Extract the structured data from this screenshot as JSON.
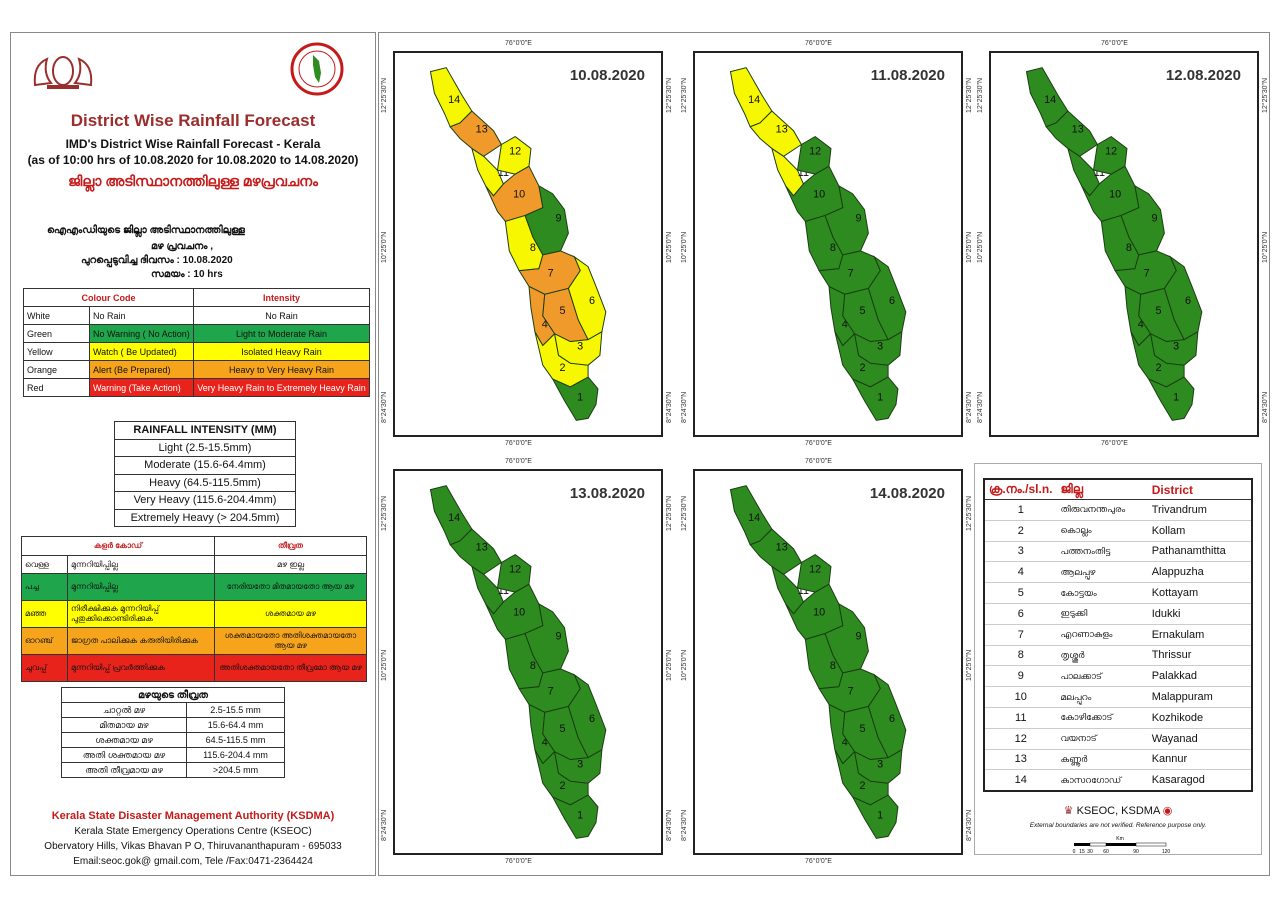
{
  "header": {
    "title": "District Wise Rainfall Forecast",
    "subtitle1": "IMD's District Wise Rainfall Forecast - Kerala",
    "subtitle2": "(as of 10:00 hrs of 10.08.2020  for 10.08.2020  to 14.08.2020)",
    "mal_title": "ജില്ലാ അടിസ്ഥാനത്തിലുള്ള  മഴപ്രവചനം",
    "mal_line1": "ഐഎംഡിയുടെ  ജില്ലാ      അടിസ്ഥാനത്തിലുള്ള",
    "mal_line2": "മഴ പ്രവചനം  ,",
    "mal_line3": "പുറപ്പെടുവിച്ച          ദിവസം :  10.08.2020",
    "mal_line4": "സമയം :  10  hrs"
  },
  "legend_en": {
    "headers": [
      "Colour Code",
      "Intensity"
    ],
    "rows": [
      {
        "color": "White",
        "action": "No Rain",
        "intensity": "No Rain",
        "bg": "#ffffff"
      },
      {
        "color": "Green",
        "action": "No Warning ( No Action)",
        "intensity": "Light to Moderate Rain",
        "bg": "#1fa54b"
      },
      {
        "color": "Yellow",
        "action": "Watch ( Be Updated)",
        "intensity": "Isolated Heavy Rain",
        "bg": "#ffff00"
      },
      {
        "color": "Orange",
        "action": "Alert (Be Prepared)",
        "intensity": "Heavy to Very Heavy Rain",
        "bg": "#f5a41c"
      },
      {
        "color": "Red",
        "action": "Warning (Take Action)",
        "intensity": "Very Heavy Rain to Extremely Heavy Rain",
        "bg": "#e8231b"
      }
    ]
  },
  "intensity_en": {
    "title": "RAINFALL INTENSITY (MM)",
    "rows": [
      "Light (2.5-15.5mm)",
      "Moderate (15.6-64.4mm)",
      "Heavy (64.5-115.5mm)",
      "Very Heavy (115.6-204.4mm)",
      "Extremely Heavy (> 204.5mm)"
    ]
  },
  "legend_ml": {
    "headers": [
      "കളർ കോഡ്",
      "തീവ്രത"
    ],
    "rows": [
      {
        "color": "വെള്ള",
        "action": "മുന്നറിയിപ്പില്ല",
        "intensity": "മഴ ഇല്ല",
        "bg": "#ffffff"
      },
      {
        "color": "പച്ച",
        "action": "മുന്നറിയിപ്പില്ല",
        "intensity": "നേരിയതോ  മിതമായതോ ആയ മഴ",
        "bg": "#1fa54b"
      },
      {
        "color": "മഞ്ഞ",
        "action": "നിരീക്ഷിക്കുക   മുന്നറിയിപ്പ് പുതുക്കിക്കൊണ്ടിരിക്കുക",
        "intensity": "ശക്തമായ    മഴ",
        "bg": "#ffff00"
      },
      {
        "color": "ഓറഞ്ച്",
        "action": "ജാഗ്രത  പാലിക്കുക കരുതിയിരിക്കുക",
        "intensity": "ശക്തമായതോ അതിശക്തമായതോ  ആയ മഴ",
        "bg": "#f5a41c"
      },
      {
        "color": "ചുവപ്പ്",
        "action": "മുന്നറിയിപ്പ് പ്രവർത്തിക്കുക",
        "intensity": "അതിശക്തമായതോ തീവ്രമോ  ആയ മഴ",
        "bg": "#e8231b"
      }
    ]
  },
  "intensity_ml": {
    "title": "മഴയുടെ തീവ്രത",
    "rows": [
      {
        "label": "ചാറ്റൽ മഴ",
        "range": "2.5-15.5 mm"
      },
      {
        "label": "മിതമായ മഴ",
        "range": "15.6-64.4 mm"
      },
      {
        "label": "ശക്തമായ മഴ",
        "range": "64.5-115.5 mm"
      },
      {
        "label": "അതി ശക്തമായ മഴ",
        "range": "115.6-204.4 mm"
      },
      {
        "label": "അതി തീവ്രമായ മഴ",
        "range": ">204.5 mm"
      }
    ]
  },
  "footer": {
    "org": "Kerala State Disaster Management Authority (KSDMA)",
    "line1": "Kerala State Emergency Operations Centre (KSEOC)",
    "line2": "Obervatory Hills, Vikas Bhavan P O, Thiruvananthapuram - 695033",
    "line3": "Email:seoc.gok@ gmail.com, Tele /Fax:0471-2364424"
  },
  "coords": {
    "lon": "76°0'0\"E",
    "lat_top": "12°25'30\"N",
    "lat_mid": "10°25'0\"N",
    "lat_bot": "8°24'30\"N"
  },
  "colors": {
    "green": "#2e8b1f",
    "yellow": "#f6f700",
    "orange": "#f09a2b"
  },
  "maps": [
    {
      "date": "10.08.2020",
      "districts": {
        "1": "green",
        "2": "yellow",
        "3": "yellow",
        "4": "orange",
        "5": "orange",
        "6": "yellow",
        "7": "orange",
        "8": "yellow",
        "9": "green",
        "10": "orange",
        "11": "yellow",
        "12": "yellow",
        "13": "orange",
        "14": "yellow"
      }
    },
    {
      "date": "11.08.2020",
      "districts": {
        "1": "green",
        "2": "green",
        "3": "green",
        "4": "green",
        "5": "green",
        "6": "green",
        "7": "green",
        "8": "green",
        "9": "green",
        "10": "green",
        "11": "yellow",
        "12": "green",
        "13": "yellow",
        "14": "yellow"
      }
    },
    {
      "date": "12.08.2020",
      "districts": {
        "1": "green",
        "2": "green",
        "3": "green",
        "4": "green",
        "5": "green",
        "6": "green",
        "7": "green",
        "8": "green",
        "9": "green",
        "10": "green",
        "11": "green",
        "12": "green",
        "13": "green",
        "14": "green"
      }
    },
    {
      "date": "13.08.2020",
      "districts": {
        "1": "green",
        "2": "green",
        "3": "green",
        "4": "green",
        "5": "green",
        "6": "green",
        "7": "green",
        "8": "green",
        "9": "green",
        "10": "green",
        "11": "green",
        "12": "green",
        "13": "green",
        "14": "green"
      }
    },
    {
      "date": "14.08.2020",
      "districts": {
        "1": "green",
        "2": "green",
        "3": "green",
        "4": "green",
        "5": "green",
        "6": "green",
        "7": "green",
        "8": "green",
        "9": "green",
        "10": "green",
        "11": "green",
        "12": "green",
        "13": "green",
        "14": "green"
      }
    }
  ],
  "district_table": {
    "headers": [
      "ക്ര.നം./sl.n.",
      "ജില്ല",
      "District"
    ],
    "rows": [
      {
        "n": "1",
        "ml": "തിരുവനന്തപുരം",
        "en": "Trivandrum"
      },
      {
        "n": "2",
        "ml": "കൊല്ലം",
        "en": "Kollam"
      },
      {
        "n": "3",
        "ml": "പത്തനംതിട്ട",
        "en": "Pathanamthitta"
      },
      {
        "n": "4",
        "ml": "ആലപ്പുഴ",
        "en": "Alappuzha"
      },
      {
        "n": "5",
        "ml": "കോട്ടയം",
        "en": "Kottayam"
      },
      {
        "n": "6",
        "ml": "ഇടുക്കി",
        "en": "Idukki"
      },
      {
        "n": "7",
        "ml": "എറണാകുളം",
        "en": "Ernakulam"
      },
      {
        "n": "8",
        "ml": "തൃശ്ശൂർ",
        "en": "Thrissur"
      },
      {
        "n": "9",
        "ml": "പാലക്കാട്",
        "en": "Palakkad"
      },
      {
        "n": "10",
        "ml": "മലപ്പുറം",
        "en": "Malappuram"
      },
      {
        "n": "11",
        "ml": "കോഴിക്കോട്",
        "en": "Kozhikode"
      },
      {
        "n": "12",
        "ml": "വയനാട്",
        "en": "Wayanad"
      },
      {
        "n": "13",
        "ml": "കണ്ണൂർ",
        "en": "Kannur"
      },
      {
        "n": "14",
        "ml": "കാസറഗോഡ്",
        "en": "Kasaragod"
      }
    ]
  },
  "credits": {
    "ksdma": "KSEOC, KSDMA",
    "disclaimer": "External boundaries are not verified. Reference purpose only.",
    "scale_unit": "Km",
    "scale_ticks": [
      "0",
      "15",
      "30",
      "60",
      "90",
      "120"
    ]
  }
}
